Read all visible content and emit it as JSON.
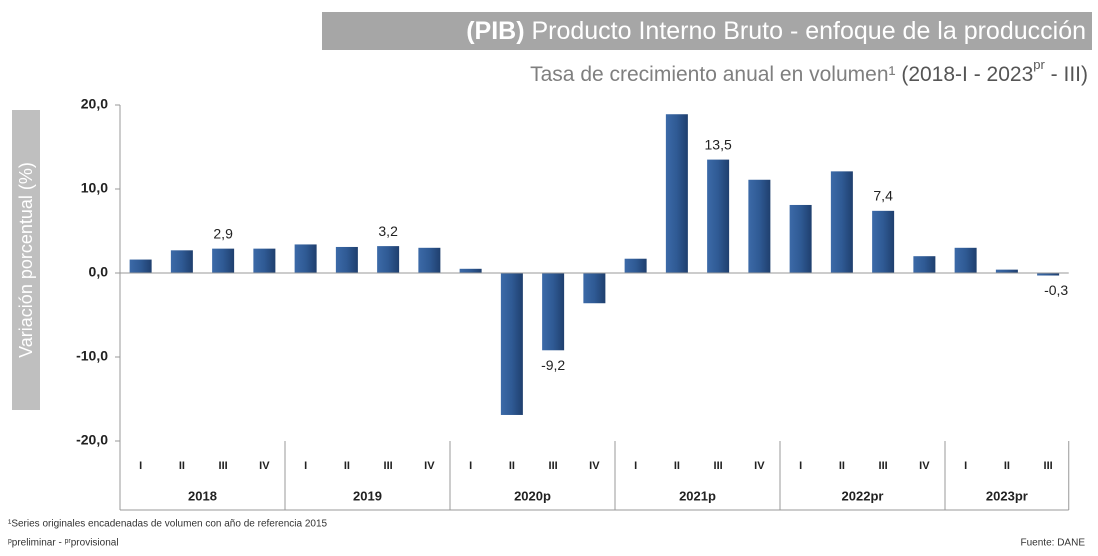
{
  "chart_data": {
    "type": "bar",
    "title_abbr": "(PIB)",
    "title": "Producto Interno Bruto  - enfoque de la producción",
    "subtitle_parts": [
      "Tasa de crecimiento anual en volumen",
      "¹",
      " (2018-I - 2023",
      "pr",
      " - III)"
    ],
    "y_label": "Variación porcentual (%)",
    "color": "#2f5a94",
    "ylim": [
      -20,
      20
    ],
    "yticks": [
      {
        "value": 20,
        "label": "20,0"
      },
      {
        "value": 10,
        "label": "10,0"
      },
      {
        "value": 0,
        "label": "0,0"
      },
      {
        "value": -10,
        "label": "-10,0"
      },
      {
        "value": -20,
        "label": "-20,0"
      }
    ],
    "groups": [
      {
        "label": "2018",
        "categories": [
          "I",
          "II",
          "III",
          "IV"
        ],
        "values": [
          1.6,
          2.7,
          2.9,
          2.9
        ],
        "value_labels": [
          null,
          null,
          "2,9",
          null
        ]
      },
      {
        "label": "2019",
        "categories": [
          "I",
          "II",
          "III",
          "IV"
        ],
        "values": [
          3.4,
          3.1,
          3.2,
          3.0
        ],
        "value_labels": [
          null,
          null,
          "3,2",
          null
        ]
      },
      {
        "label": "2020p",
        "categories": [
          "I",
          "II",
          "III",
          "IV"
        ],
        "values": [
          0.5,
          -16.9,
          -9.2,
          -3.6
        ],
        "value_labels": [
          null,
          null,
          "-9,2",
          null
        ]
      },
      {
        "label": "2021p",
        "categories": [
          "I",
          "II",
          "III",
          "IV"
        ],
        "values": [
          1.7,
          18.9,
          13.5,
          11.1
        ],
        "value_labels": [
          null,
          null,
          "13,5",
          null
        ]
      },
      {
        "label": "2022pr",
        "categories": [
          "I",
          "II",
          "III",
          "IV"
        ],
        "values": [
          8.1,
          12.1,
          7.4,
          2.0
        ],
        "value_labels": [
          null,
          null,
          "7,4",
          null
        ]
      },
      {
        "label": "2023pr",
        "categories": [
          "I",
          "II",
          "III"
        ],
        "values": [
          3.0,
          0.4,
          -0.3
        ],
        "value_labels": [
          null,
          null,
          "-0,3"
        ]
      }
    ],
    "footnotes": [
      "¹Series originales encadenadas de volumen con año de referencia 2015",
      "ᵖpreliminar - ᵖʳprovisional"
    ],
    "source": "Fuente: DANE"
  }
}
